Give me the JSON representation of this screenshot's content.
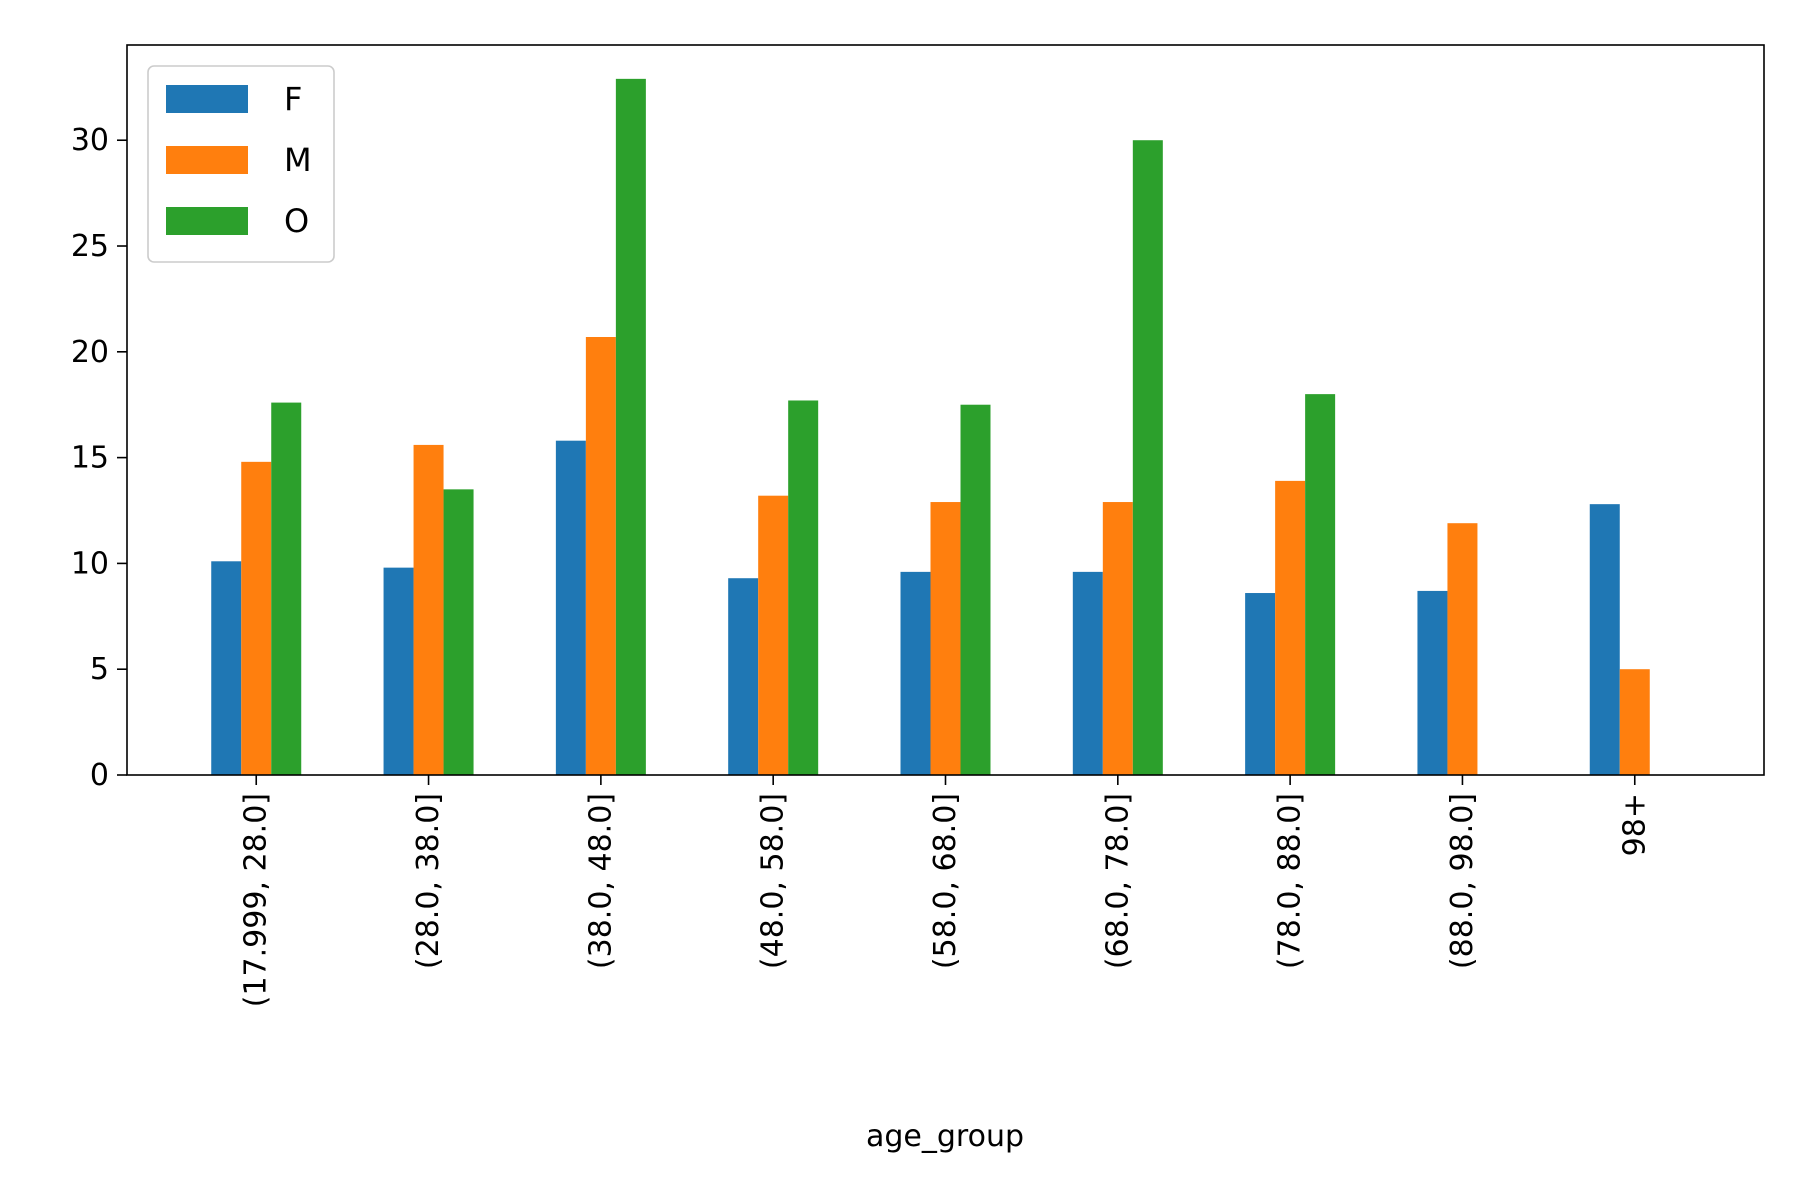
{
  "chart_data": {
    "type": "bar",
    "title": "",
    "xlabel": "age_group",
    "ylabel": "",
    "categories": [
      "(17.999, 28.0]",
      "(28.0, 38.0]",
      "(38.0, 48.0]",
      "(48.0, 58.0]",
      "(58.0, 68.0]",
      "(68.0, 78.0]",
      "(78.0, 88.0]",
      "(88.0, 98.0]",
      "98+"
    ],
    "series": [
      {
        "name": "F",
        "color": "#1f77b4",
        "values": [
          10.1,
          9.8,
          15.8,
          9.3,
          9.6,
          9.6,
          8.6,
          8.7,
          12.8
        ]
      },
      {
        "name": "M",
        "color": "#ff7f0e",
        "values": [
          14.8,
          15.6,
          20.7,
          13.2,
          12.9,
          12.9,
          13.9,
          11.9,
          5.0
        ]
      },
      {
        "name": "O",
        "color": "#2ca02c",
        "values": [
          17.6,
          13.5,
          32.9,
          17.7,
          17.5,
          30.0,
          18.0,
          null,
          null
        ]
      }
    ],
    "ylim": [
      0,
      34.5
    ],
    "yticks": [
      "0",
      "5",
      "10",
      "15",
      "20",
      "25",
      "30"
    ],
    "grid": false,
    "legend_position": "top-left"
  }
}
